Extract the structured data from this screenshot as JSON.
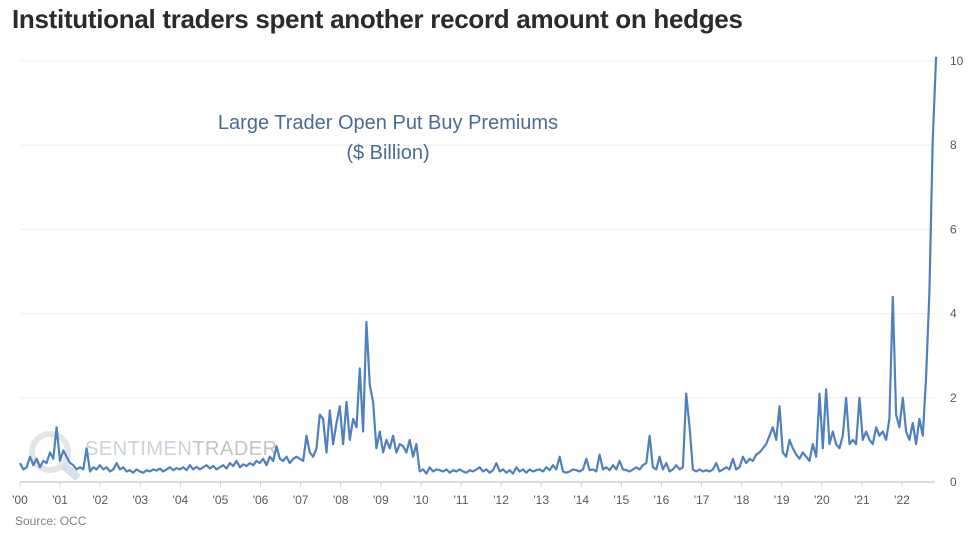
{
  "title": "Institutional traders spent another record amount on hedges",
  "source": "Source: OCC",
  "watermark": {
    "part1": "SENTIMEN",
    "part2": "TRADER"
  },
  "chart_data": {
    "type": "line",
    "title": "Large Trader Open Put Buy Premiums",
    "subtitle": "($ Billion)",
    "xlabel": "",
    "ylabel": "",
    "xlim": [
      2000,
      2022.85
    ],
    "ylim": [
      0,
      10
    ],
    "grid": true,
    "y_axis_position": "right",
    "color": "#4f81bd",
    "x_ticks": [
      2000,
      2001,
      2002,
      2003,
      2004,
      2005,
      2006,
      2007,
      2008,
      2009,
      2010,
      2011,
      2012,
      2013,
      2014,
      2015,
      2016,
      2017,
      2018,
      2019,
      2020,
      2021,
      2022
    ],
    "x_tick_labels": [
      "'00",
      "'01",
      "'02",
      "'03",
      "'04",
      "'05",
      "'06",
      "'07",
      "'08",
      "'09",
      "'10",
      "'11",
      "'12",
      "'13",
      "'14",
      "'15",
      "'16",
      "'17",
      "'18",
      "'19",
      "'20",
      "'21",
      "'22"
    ],
    "y_ticks": [
      0,
      2,
      4,
      6,
      8,
      10
    ],
    "y_tick_labels": [
      "0",
      "2",
      "4",
      "6",
      "8",
      "10"
    ],
    "series": [
      {
        "name": "Large Trader Open Put Buy Premiums",
        "start_year": 2000,
        "step_years": 0.0833,
        "values": [
          0.45,
          0.3,
          0.35,
          0.6,
          0.4,
          0.55,
          0.35,
          0.5,
          0.45,
          0.7,
          0.55,
          1.3,
          0.5,
          0.75,
          0.6,
          0.45,
          0.4,
          0.3,
          0.35,
          0.3,
          0.8,
          0.25,
          0.35,
          0.3,
          0.4,
          0.3,
          0.35,
          0.25,
          0.3,
          0.45,
          0.3,
          0.35,
          0.25,
          0.28,
          0.22,
          0.3,
          0.25,
          0.22,
          0.28,
          0.25,
          0.3,
          0.27,
          0.32,
          0.25,
          0.3,
          0.35,
          0.28,
          0.33,
          0.3,
          0.35,
          0.28,
          0.4,
          0.3,
          0.36,
          0.3,
          0.35,
          0.4,
          0.32,
          0.38,
          0.3,
          0.35,
          0.4,
          0.32,
          0.45,
          0.38,
          0.5,
          0.35,
          0.42,
          0.38,
          0.45,
          0.4,
          0.5,
          0.45,
          0.55,
          0.4,
          0.6,
          0.5,
          0.85,
          0.55,
          0.5,
          0.6,
          0.45,
          0.55,
          0.6,
          0.55,
          0.5,
          1.1,
          0.7,
          0.6,
          0.8,
          1.6,
          1.5,
          0.7,
          1.7,
          0.9,
          1.4,
          1.8,
          0.9,
          1.9,
          1.0,
          1.5,
          1.3,
          2.7,
          1.2,
          3.8,
          2.3,
          1.9,
          0.8,
          1.2,
          0.7,
          1.0,
          0.8,
          1.1,
          0.7,
          0.9,
          0.85,
          0.7,
          1.0,
          0.6,
          0.9,
          0.25,
          0.3,
          0.2,
          0.35,
          0.25,
          0.3,
          0.28,
          0.25,
          0.3,
          0.22,
          0.28,
          0.25,
          0.3,
          0.25,
          0.22,
          0.28,
          0.25,
          0.3,
          0.35,
          0.25,
          0.3,
          0.22,
          0.28,
          0.45,
          0.25,
          0.3,
          0.22,
          0.28,
          0.2,
          0.35,
          0.25,
          0.3,
          0.22,
          0.3,
          0.25,
          0.28,
          0.3,
          0.25,
          0.35,
          0.28,
          0.4,
          0.3,
          0.6,
          0.25,
          0.22,
          0.25,
          0.3,
          0.28,
          0.25,
          0.3,
          0.55,
          0.28,
          0.3,
          0.25,
          0.65,
          0.3,
          0.35,
          0.28,
          0.4,
          0.3,
          0.5,
          0.3,
          0.28,
          0.25,
          0.3,
          0.35,
          0.3,
          0.4,
          0.45,
          1.1,
          0.35,
          0.3,
          0.6,
          0.3,
          0.45,
          0.25,
          0.3,
          0.4,
          0.3,
          0.35,
          2.1,
          1.3,
          0.3,
          0.25,
          0.3,
          0.25,
          0.28,
          0.25,
          0.3,
          0.45,
          0.25,
          0.3,
          0.35,
          0.3,
          0.55,
          0.3,
          0.35,
          0.6,
          0.45,
          0.55,
          0.5,
          0.65,
          0.7,
          0.8,
          0.9,
          1.1,
          1.3,
          1.0,
          1.8,
          0.7,
          0.6,
          1.0,
          0.8,
          0.65,
          0.55,
          0.7,
          0.6,
          0.5,
          0.9,
          0.6,
          2.1,
          0.8,
          2.2,
          0.9,
          1.2,
          0.9,
          0.8,
          1.1,
          2.0,
          0.9,
          1.0,
          0.9,
          2.0,
          1.0,
          1.2,
          1.0,
          0.9,
          1.3,
          1.1,
          1.2,
          1.0,
          1.5,
          4.4,
          1.6,
          1.3,
          2.0,
          1.2,
          1.0,
          1.4,
          0.9,
          1.5,
          1.1,
          2.5,
          4.5,
          8.1,
          10.1
        ]
      }
    ]
  }
}
